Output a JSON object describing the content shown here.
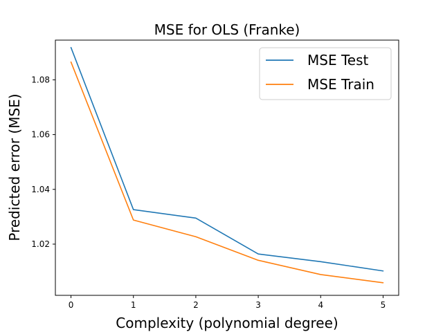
{
  "chart_data": {
    "type": "line",
    "title": "MSE for OLS (Franke)",
    "xlabel": "Complexity (polynomial degree)",
    "ylabel": "Predicted error (MSE)",
    "x": [
      0,
      1,
      2,
      3,
      4,
      5
    ],
    "xlim": [
      -0.25,
      5.25
    ],
    "ylim": [
      1.0013,
      1.0945
    ],
    "xticks": [
      0,
      1,
      2,
      3,
      4,
      5
    ],
    "xtick_labels": [
      "0",
      "1",
      "2",
      "3",
      "4",
      "5"
    ],
    "yticks": [
      1.02,
      1.04,
      1.06,
      1.08
    ],
    "ytick_labels": [
      "1.02",
      "1.04",
      "1.06",
      "1.08"
    ],
    "grid": false,
    "legend_position": "top-right",
    "series": [
      {
        "name": "MSE Test",
        "color": "#1f77b4",
        "values": [
          1.0918,
          1.0326,
          1.0295,
          1.0164,
          1.0136,
          1.0102
        ]
      },
      {
        "name": "MSE Train",
        "color": "#ff7f0e",
        "values": [
          1.0865,
          1.0288,
          1.0227,
          1.0141,
          1.0089,
          1.0059
        ]
      }
    ]
  }
}
